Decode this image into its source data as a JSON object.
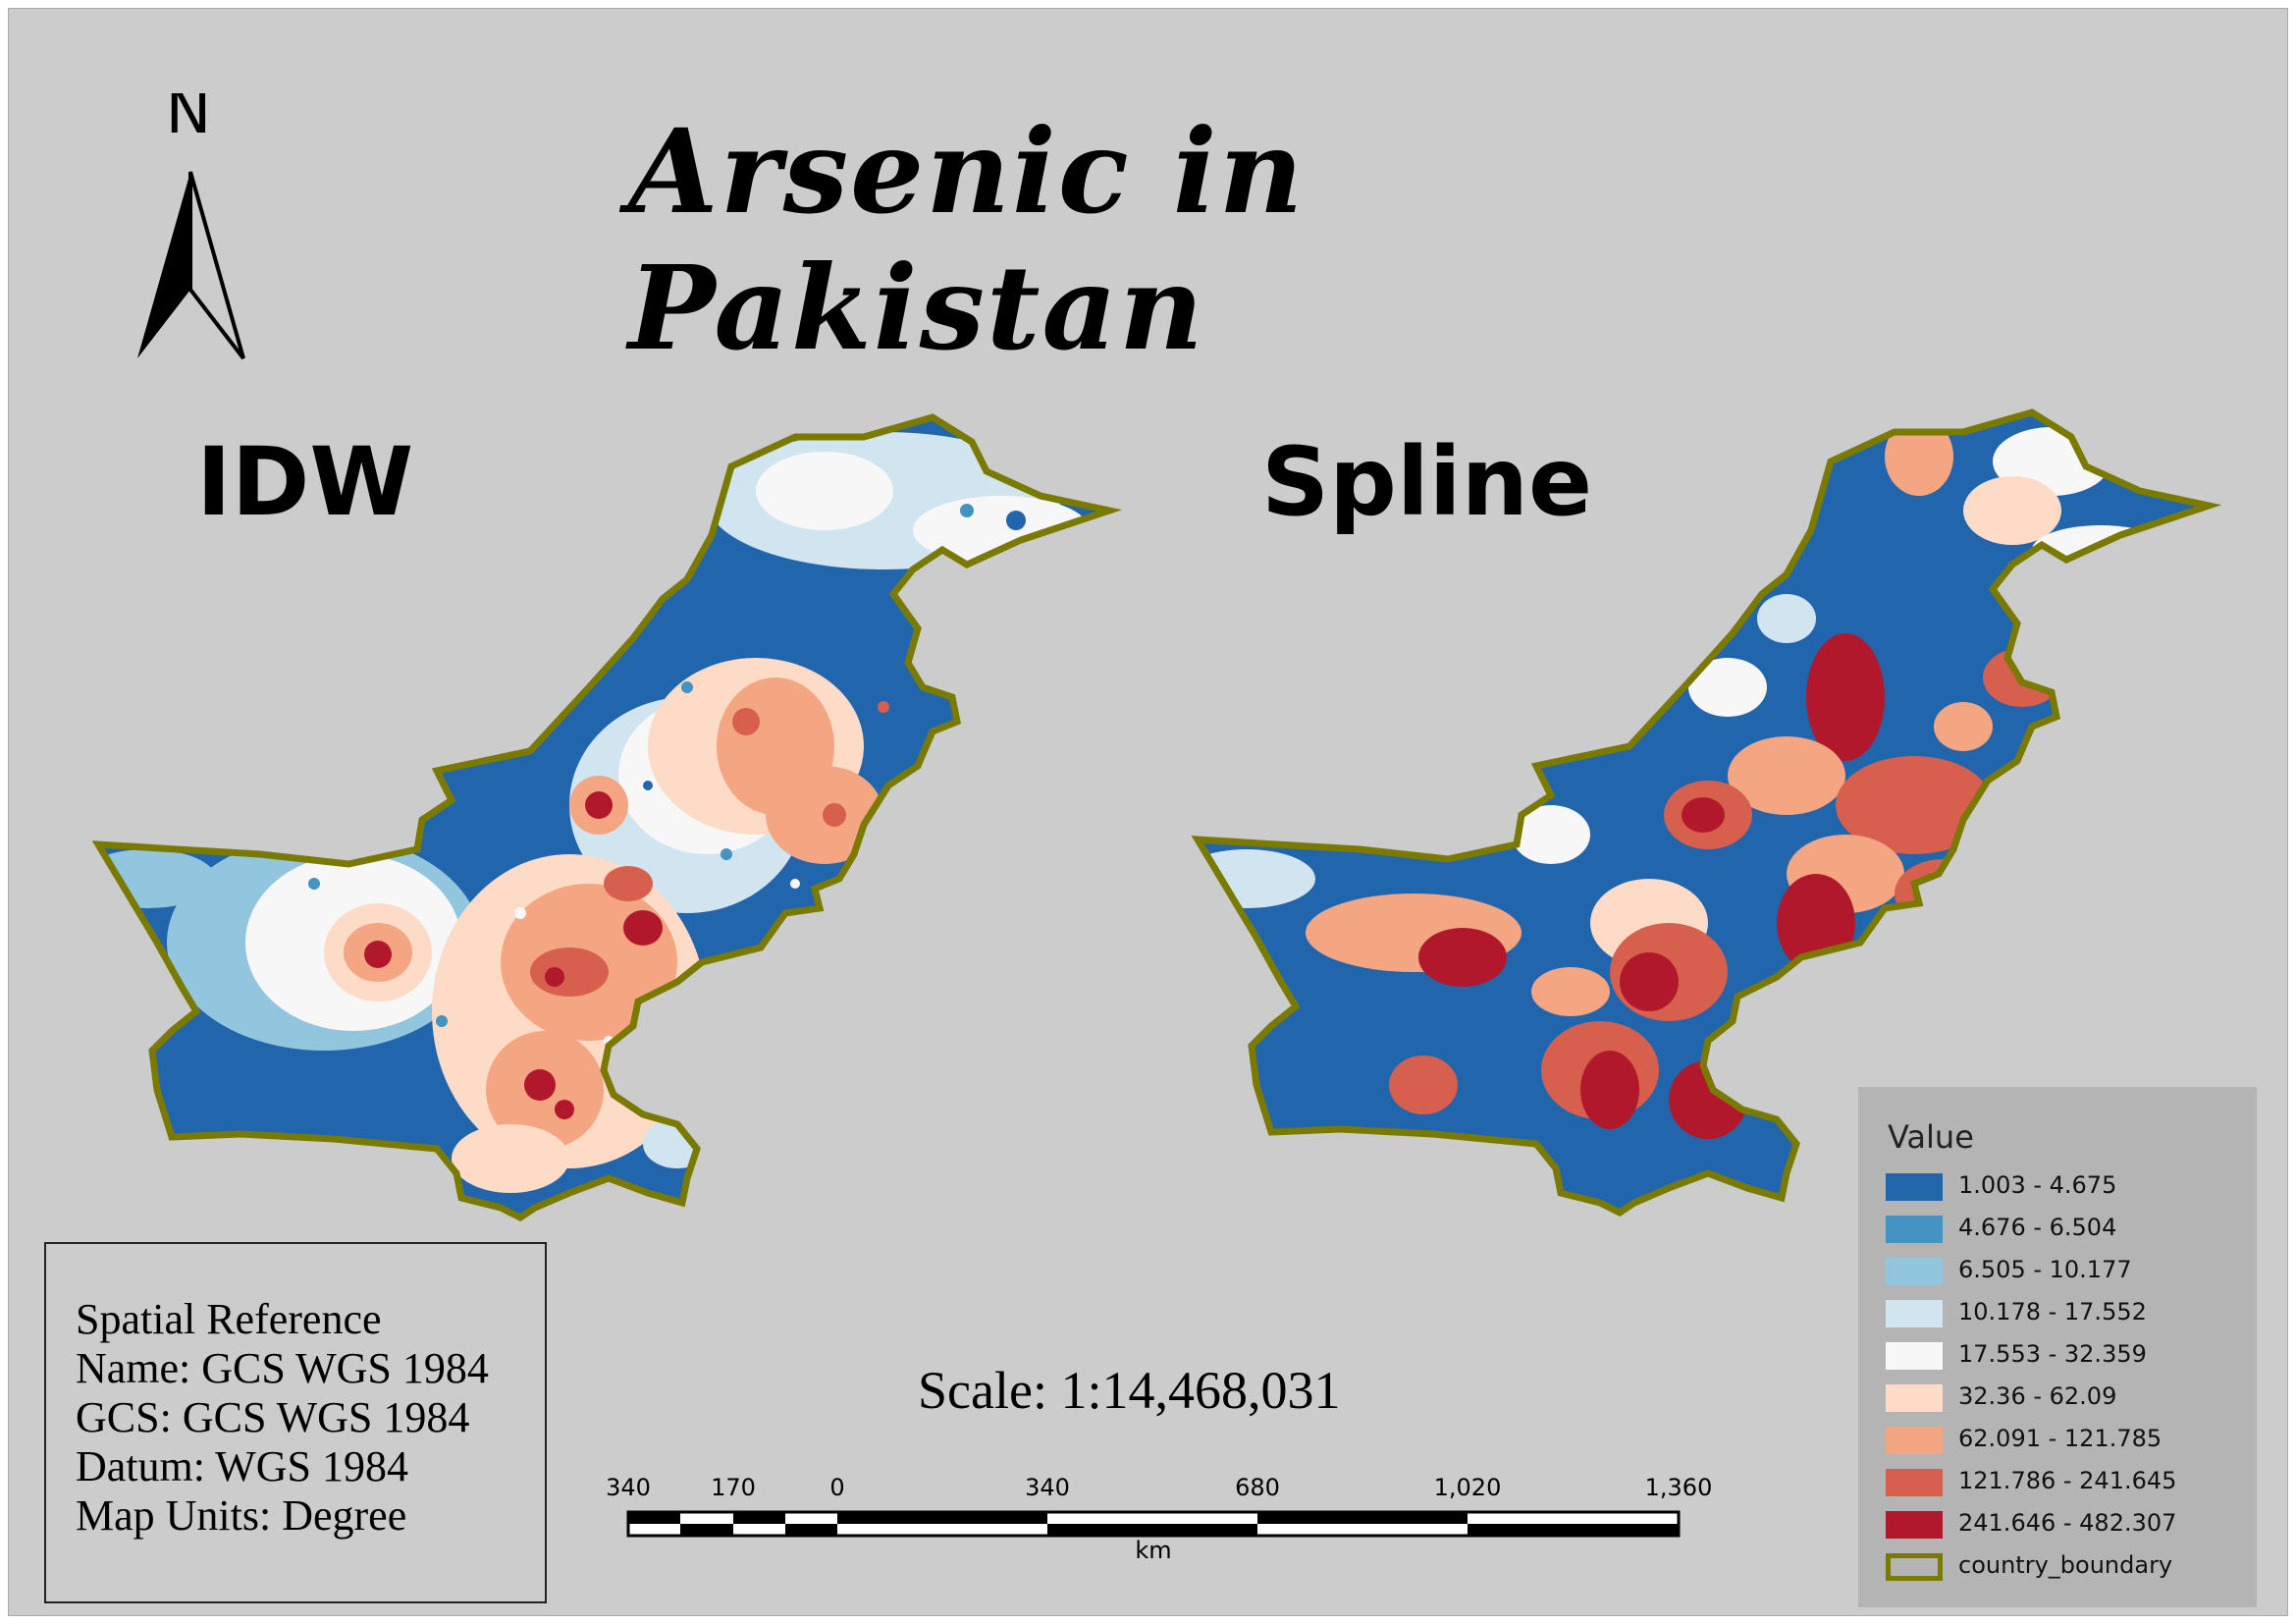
{
  "title": "Arsenic in Pakistan",
  "north_arrow": {
    "label": "N",
    "icon": "north-arrow-icon"
  },
  "panels": [
    {
      "label": "IDW",
      "method": "IDW"
    },
    {
      "label": "Spline",
      "method": "Spline"
    }
  ],
  "spatial_reference": {
    "heading": "Spatial Reference",
    "name": "Name: GCS WGS 1984",
    "gcs": "GCS: GCS WGS 1984",
    "datum": "Datum: WGS 1984",
    "units": "Map Units: Degree"
  },
  "scale": {
    "text": "Scale: 1:14,468,031",
    "ticks": [
      "340",
      "170",
      "0",
      "340",
      "680",
      "1,020",
      "1,360"
    ],
    "unit": "km"
  },
  "legend": {
    "title": "Value",
    "classes": [
      {
        "label": "1.003 - 4.675",
        "color": "#2166ac"
      },
      {
        "label": "4.676 - 6.504",
        "color": "#4393c3"
      },
      {
        "label": "6.505 - 10.177",
        "color": "#92c5de"
      },
      {
        "label": "10.178 - 17.552",
        "color": "#d1e5f0"
      },
      {
        "label": "17.553 - 32.359",
        "color": "#f7f7f7"
      },
      {
        "label": "32.36 - 62.09",
        "color": "#fddbc7"
      },
      {
        "label": "62.091 - 121.785",
        "color": "#f4a582"
      },
      {
        "label": "121.786 - 241.645",
        "color": "#d6604d"
      },
      {
        "label": "241.646 - 482.307",
        "color": "#b2182b"
      }
    ],
    "boundary": {
      "label": "country_boundary",
      "color": "#7a7a00"
    }
  }
}
